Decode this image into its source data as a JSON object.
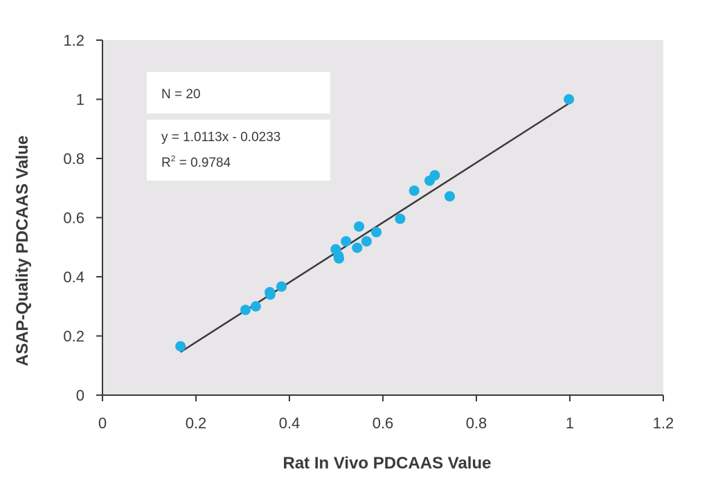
{
  "chart_data": {
    "type": "scatter",
    "title": "",
    "xlabel": "Rat In Vivo PDCAAS Value",
    "ylabel": "ASAP-Quality PDCAAS Value",
    "xlim": [
      0,
      1.2
    ],
    "ylim": [
      0,
      1.2
    ],
    "x_ticks": [
      0,
      0.2,
      0.4,
      0.6,
      0.8,
      1,
      1.2
    ],
    "y_ticks": [
      0,
      0.2,
      0.4,
      0.6,
      0.8,
      1,
      1.2
    ],
    "x_tick_labels": [
      "0",
      "0.2",
      "0.4",
      "0.6",
      "0.8",
      "1",
      "1.2"
    ],
    "y_tick_labels": [
      "0",
      "0.2",
      "0.4",
      "0.6",
      "0.8",
      "1",
      "1.2"
    ],
    "grid": false,
    "series": [
      {
        "color": "#1fb0e6",
        "points": [
          {
            "x": 0.167,
            "y": 0.165
          },
          {
            "x": 0.306,
            "y": 0.288
          },
          {
            "x": 0.328,
            "y": 0.3
          },
          {
            "x": 0.358,
            "y": 0.348
          },
          {
            "x": 0.359,
            "y": 0.34
          },
          {
            "x": 0.383,
            "y": 0.367
          },
          {
            "x": 0.499,
            "y": 0.493
          },
          {
            "x": 0.505,
            "y": 0.471
          },
          {
            "x": 0.506,
            "y": 0.462
          },
          {
            "x": 0.521,
            "y": 0.52
          },
          {
            "x": 0.545,
            "y": 0.498
          },
          {
            "x": 0.549,
            "y": 0.57
          },
          {
            "x": 0.565,
            "y": 0.52
          },
          {
            "x": 0.586,
            "y": 0.551
          },
          {
            "x": 0.637,
            "y": 0.596
          },
          {
            "x": 0.667,
            "y": 0.691
          },
          {
            "x": 0.7,
            "y": 0.725
          },
          {
            "x": 0.711,
            "y": 0.743
          },
          {
            "x": 0.743,
            "y": 0.672
          },
          {
            "x": 0.998,
            "y": 1.0
          }
        ]
      }
    ],
    "trendline": {
      "color": "#3a3a3a",
      "slope": 1.0113,
      "intercept": -0.0233,
      "x_range": [
        0.167,
        1.0
      ]
    },
    "annotations": {
      "n_text": "N = 20",
      "equation_text": "y = 1.0113x - 0.0233",
      "r2_prefix": "R",
      "r2_sup": "2",
      "r2_value": " = 0.9784"
    },
    "colors": {
      "plot_background": "#e8e6e8",
      "axis": "#3a3a3a",
      "annotation_box": "#ffffff"
    }
  }
}
